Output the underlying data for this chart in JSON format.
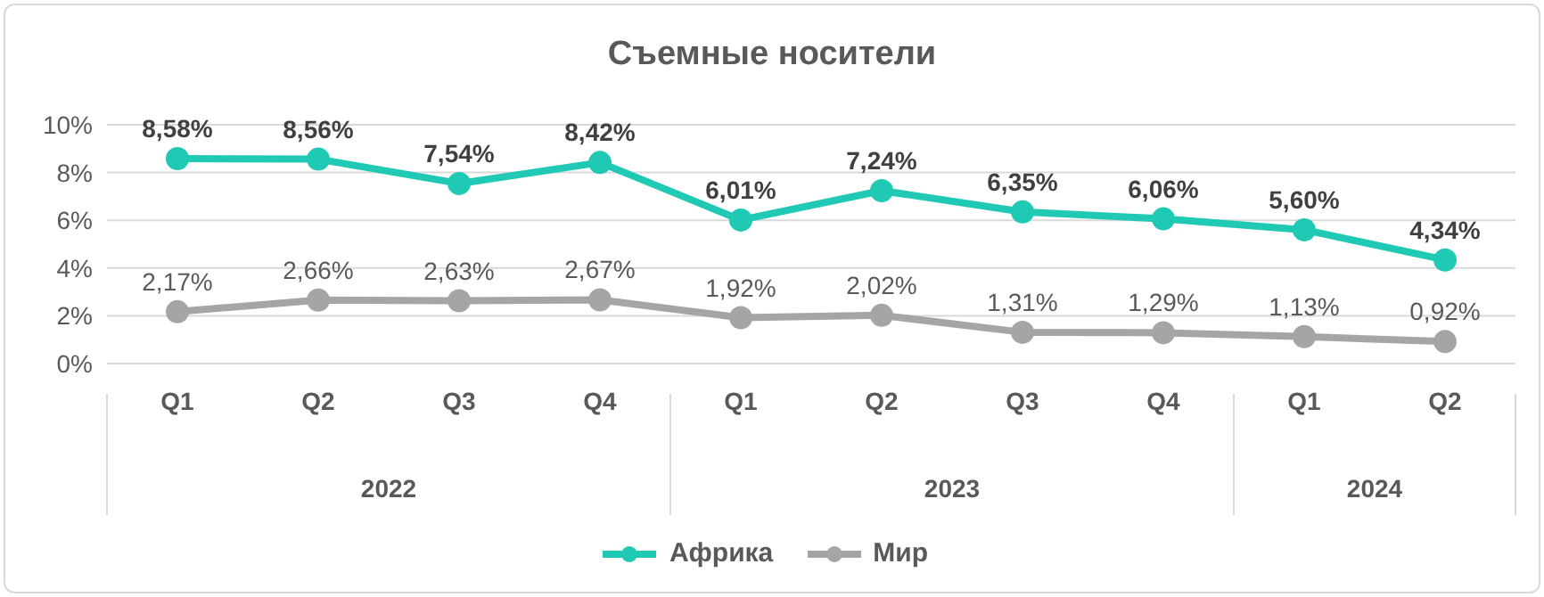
{
  "chart_data": {
    "type": "line",
    "title": "Съемные носители",
    "categories": [
      "Q1",
      "Q2",
      "Q3",
      "Q4",
      "Q1",
      "Q2",
      "Q3",
      "Q4",
      "Q1",
      "Q2"
    ],
    "annotations": [
      "2022",
      "2023",
      "2024"
    ],
    "series": [
      {
        "name": "Африка",
        "color": "#1fc9b4",
        "values": [
          8.58,
          8.56,
          7.54,
          8.42,
          6.01,
          7.24,
          6.35,
          6.06,
          5.6,
          4.34
        ],
        "value_labels": [
          "8,58%",
          "8,56%",
          "7,54%",
          "8,42%",
          "6,01%",
          "7,24%",
          "6,35%",
          "6,06%",
          "5,60%",
          "4,34%"
        ]
      },
      {
        "name": "Мир",
        "color": "#a5a5a5",
        "values": [
          2.17,
          2.66,
          2.63,
          2.67,
          1.92,
          2.02,
          1.31,
          1.29,
          1.13,
          0.92
        ],
        "value_labels": [
          "2,17%",
          "2,66%",
          "2,63%",
          "2,67%",
          "1,92%",
          "2,02%",
          "1,31%",
          "1,29%",
          "1,13%",
          "0,92%"
        ]
      }
    ],
    "ylim": [
      0,
      10
    ],
    "yticks": [
      {
        "value": 0,
        "label": "0%"
      },
      {
        "value": 2,
        "label": "2%"
      },
      {
        "value": 4,
        "label": "4%"
      },
      {
        "value": 6,
        "label": "6%"
      },
      {
        "value": 8,
        "label": "8%"
      },
      {
        "value": 10,
        "label": "10%"
      }
    ],
    "grid": "y",
    "legend": "bottom",
    "marker": "circle",
    "line_style": "solid"
  }
}
